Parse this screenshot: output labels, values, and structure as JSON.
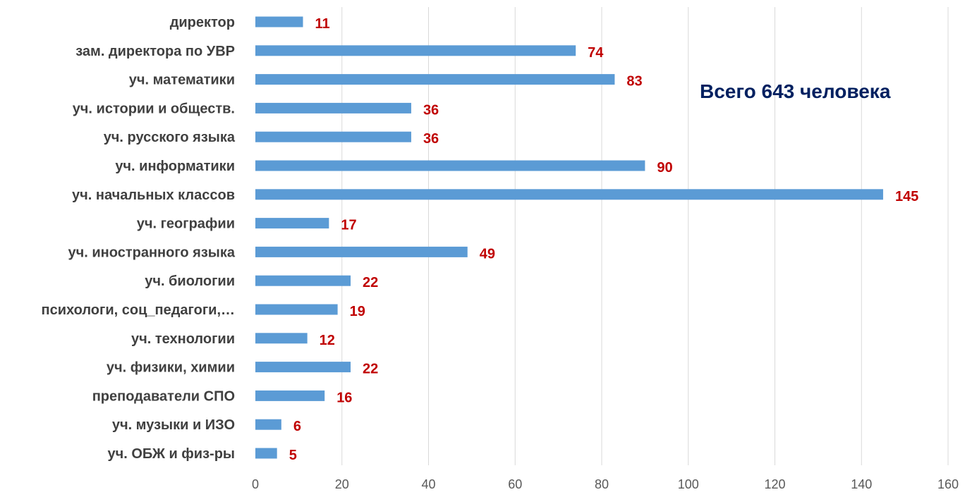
{
  "chart_data": {
    "type": "bar",
    "orientation": "horizontal",
    "title": "Всего 643 человека",
    "categories": [
      "директор",
      "зам. директора по УВР",
      "уч. математики",
      "уч. истории и обществ.",
      "уч. русского языка",
      "уч. информатики",
      "уч. начальных классов",
      "уч. географии",
      "уч. иностранного языка",
      "уч. биологии",
      "психологи, соц_педагоги,…",
      "уч. технологии",
      "уч. физики, химии",
      "преподаватели СПО",
      "уч. музыки и ИЗО",
      "уч. ОБЖ и физ-ры"
    ],
    "values": [
      11,
      74,
      83,
      36,
      36,
      90,
      145,
      17,
      49,
      22,
      19,
      12,
      22,
      16,
      6,
      5
    ],
    "xlim": [
      0,
      160
    ],
    "xticks": [
      "0",
      "20",
      "40",
      "60",
      "80",
      "100",
      "120",
      "140",
      "160"
    ],
    "grid": "vertical",
    "data_labels": true,
    "colors": {
      "bar": "#5b9bd5",
      "data_label": "#c00000",
      "title": "#002060",
      "grid": "#d9d9d9"
    }
  }
}
